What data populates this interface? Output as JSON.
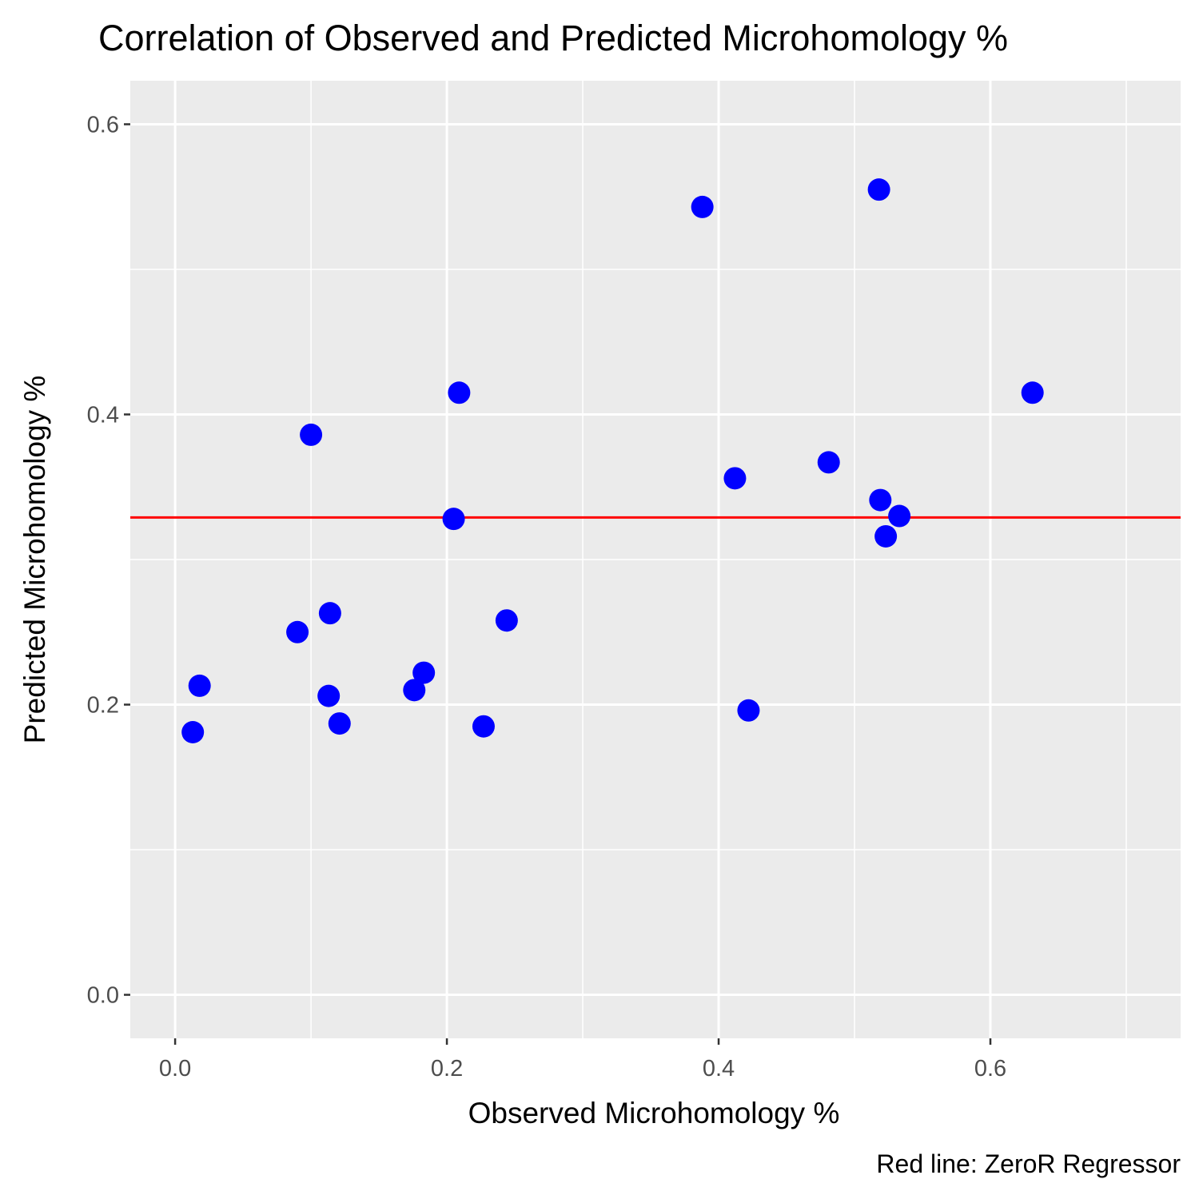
{
  "chart_data": {
    "type": "scatter",
    "title": "Correlation of Observed and Predicted Microhomology %",
    "xlabel": "Observed Microhomology %",
    "ylabel": "Predicted Microhomology %",
    "caption": "Red line: ZeroR Regressor",
    "xlim": [
      -0.033,
      0.74
    ],
    "ylim": [
      -0.03,
      0.63
    ],
    "x_ticks": [
      {
        "value": 0.0,
        "label": "0.0"
      },
      {
        "value": 0.2,
        "label": "0.2"
      },
      {
        "value": 0.4,
        "label": "0.4"
      },
      {
        "value": 0.6,
        "label": "0.6"
      }
    ],
    "y_ticks": [
      {
        "value": 0.0,
        "label": "0.0"
      },
      {
        "value": 0.2,
        "label": "0.2"
      },
      {
        "value": 0.4,
        "label": "0.4"
      },
      {
        "value": 0.6,
        "label": "0.6"
      }
    ],
    "x_minor_gridlines": [
      0.1,
      0.3,
      0.5,
      0.7
    ],
    "y_minor_gridlines": [
      0.1,
      0.3,
      0.5
    ],
    "grid": true,
    "point_color": "#0000ff",
    "panel_background": "#ebebeb",
    "gridline_color": "#ffffff",
    "reference_line": {
      "type": "horizontal",
      "y": 0.329,
      "color": "#ff0000"
    },
    "points": [
      {
        "x": 0.013,
        "y": 0.181
      },
      {
        "x": 0.018,
        "y": 0.213
      },
      {
        "x": 0.09,
        "y": 0.25
      },
      {
        "x": 0.1,
        "y": 0.386
      },
      {
        "x": 0.113,
        "y": 0.206
      },
      {
        "x": 0.114,
        "y": 0.263
      },
      {
        "x": 0.121,
        "y": 0.187
      },
      {
        "x": 0.176,
        "y": 0.21
      },
      {
        "x": 0.183,
        "y": 0.222
      },
      {
        "x": 0.205,
        "y": 0.328
      },
      {
        "x": 0.209,
        "y": 0.415
      },
      {
        "x": 0.227,
        "y": 0.185
      },
      {
        "x": 0.244,
        "y": 0.258
      },
      {
        "x": 0.388,
        "y": 0.543
      },
      {
        "x": 0.412,
        "y": 0.356
      },
      {
        "x": 0.422,
        "y": 0.196
      },
      {
        "x": 0.481,
        "y": 0.367
      },
      {
        "x": 0.518,
        "y": 0.555
      },
      {
        "x": 0.519,
        "y": 0.341
      },
      {
        "x": 0.523,
        "y": 0.316
      },
      {
        "x": 0.533,
        "y": 0.33
      },
      {
        "x": 0.631,
        "y": 0.415
      }
    ]
  }
}
